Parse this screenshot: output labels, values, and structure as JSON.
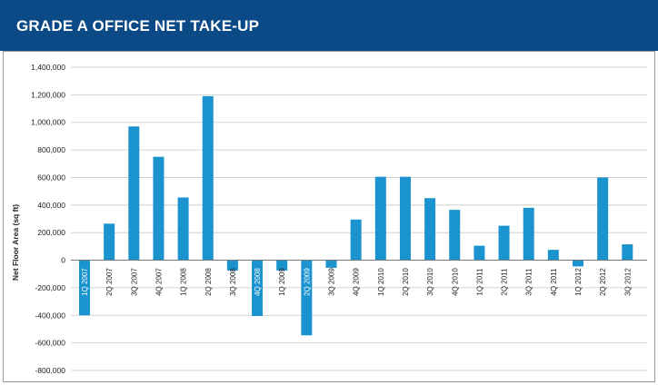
{
  "header": {
    "title": "GRADE A OFFICE NET TAKE-UP"
  },
  "colors": {
    "header_bg": "#0b4a86",
    "bar": "#1a93cf",
    "grid": "#c8c8c8",
    "zero_line": "#777777"
  },
  "chart_data": {
    "type": "bar",
    "title": "GRADE A OFFICE NET TAKE-UP",
    "xlabel": "",
    "ylabel": "Net Floor Area (sq ft)",
    "ylim": [
      -800000,
      1400000
    ],
    "yticks": [
      1400000,
      1200000,
      1000000,
      800000,
      600000,
      400000,
      200000,
      0,
      -200000,
      -400000,
      -600000,
      -800000
    ],
    "ytick_labels": [
      "1,400,000",
      "1,200,000",
      "1,000,000",
      "800,000",
      "600,000",
      "400,000",
      "200,000",
      "0",
      "-200,000",
      "-400,000",
      "-600,000",
      "-800,000"
    ],
    "grid": true,
    "categories": [
      "1Q 2007",
      "2Q 2007",
      "3Q 2007",
      "4Q 2007",
      "1Q 2008",
      "2Q 2008",
      "3Q 2008",
      "4Q 2008",
      "1Q 2009",
      "2Q 2009",
      "3Q 2009",
      "4Q 2009",
      "1Q 2010",
      "2Q 2010",
      "3Q 2010",
      "4Q 2010",
      "1Q 2011",
      "2Q 2011",
      "3Q 2011",
      "4Q 2011",
      "1Q 2012",
      "2Q 2012",
      "3Q 2012"
    ],
    "values": [
      -400000,
      265000,
      970000,
      750000,
      455000,
      1190000,
      -75000,
      -405000,
      -75000,
      -545000,
      -55000,
      295000,
      605000,
      605000,
      450000,
      365000,
      105000,
      250000,
      380000,
      75000,
      -45000,
      600000,
      115000
    ]
  }
}
